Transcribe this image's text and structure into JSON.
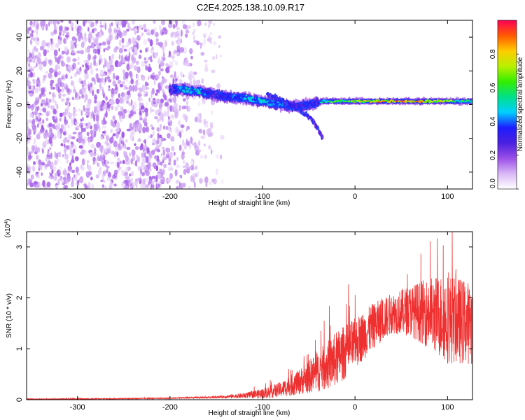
{
  "title": "C2E4.2025.138.10.09.R17",
  "chart_data": [
    {
      "type": "heatmap",
      "xlabel": "Height of straight line (km)",
      "ylabel": "Frequency (Hz)",
      "xlim": [
        -355,
        127
      ],
      "ylim": [
        -50,
        50
      ],
      "x_ticks": [
        -300,
        -200,
        -100,
        0,
        100
      ],
      "y_ticks": [
        -40,
        -20,
        0,
        20,
        40
      ],
      "colorbar": {
        "label": "Normalized spectral amplitude",
        "range": [
          0,
          1
        ],
        "ticks": [
          "0.0",
          "0.2",
          "0.4",
          "0.6",
          "0.8"
        ],
        "tick_values": [
          0.0,
          0.2,
          0.4,
          0.6,
          0.8
        ],
        "colors": [
          "#ffffff",
          "#d9b8f5",
          "#9b4fe8",
          "#4a20e0",
          "#1d1dff",
          "#00d0ff",
          "#00e08a",
          "#33ee00",
          "#b8f000",
          "#ffcc00",
          "#ff5a00",
          "#ff0055"
        ]
      },
      "noise_region": {
        "x_start": -355,
        "x_dense_end": -205,
        "x_fade_end": -140
      },
      "signal_track": {
        "x": [
          -200,
          -185,
          -170,
          -160,
          -150,
          -140,
          -130,
          -120,
          -110,
          -100,
          -90,
          -80,
          -70,
          -60,
          -50,
          -40,
          -35,
          -30,
          -20,
          -10,
          0,
          10,
          20,
          30,
          40,
          50,
          60,
          70,
          80,
          90,
          100,
          110,
          120,
          127
        ],
        "freq": [
          9,
          9,
          8,
          7,
          6,
          5,
          4,
          4,
          3,
          2,
          1,
          0,
          -1,
          -1,
          0,
          1,
          2,
          2,
          2,
          2,
          2,
          2,
          2,
          2,
          2,
          2,
          2,
          2,
          2,
          2,
          2,
          2,
          2,
          2
        ],
        "amplitude": [
          0.25,
          0.45,
          0.5,
          0.35,
          0.3,
          0.35,
          0.4,
          0.45,
          0.45,
          0.5,
          0.45,
          0.4,
          0.35,
          0.3,
          0.35,
          0.3,
          0.55,
          0.6,
          0.65,
          0.6,
          0.7,
          0.75,
          0.8,
          0.85,
          0.8,
          0.9,
          0.85,
          0.8,
          0.7,
          0.75,
          0.7,
          0.6,
          0.55,
          0.5
        ]
      },
      "secondary_branch": {
        "x": [
          -95,
          -80,
          -65,
          -55,
          -45,
          -40,
          -35
        ],
        "freq": [
          6,
          3,
          -1,
          -5,
          -10,
          -14,
          -20
        ]
      }
    },
    {
      "type": "line",
      "xlabel": "Height of straight line (km)",
      "ylabel": "SNR (10 * v/v)",
      "y_multiplier": "(x10^4)",
      "xlim": [
        -355,
        127
      ],
      "ylim": [
        0,
        3.3
      ],
      "x_ticks": [
        -300,
        -200,
        -100,
        0,
        100
      ],
      "y_ticks": [
        0,
        1,
        2,
        3
      ],
      "line_color": "#ee3030",
      "envelope": {
        "x": [
          -355,
          -250,
          -200,
          -150,
          -120,
          -100,
          -80,
          -60,
          -40,
          -20,
          0,
          20,
          40,
          60,
          80,
          100,
          127
        ],
        "mean": [
          0.01,
          0.02,
          0.03,
          0.05,
          0.08,
          0.12,
          0.2,
          0.35,
          0.55,
          0.8,
          1.1,
          1.45,
          1.7,
          1.75,
          1.7,
          1.6,
          1.5
        ],
        "spread": [
          0.01,
          0.01,
          0.01,
          0.02,
          0.05,
          0.1,
          0.15,
          0.25,
          0.4,
          0.55,
          0.5,
          0.45,
          0.4,
          0.5,
          0.7,
          0.9,
          0.8
        ]
      }
    }
  ]
}
